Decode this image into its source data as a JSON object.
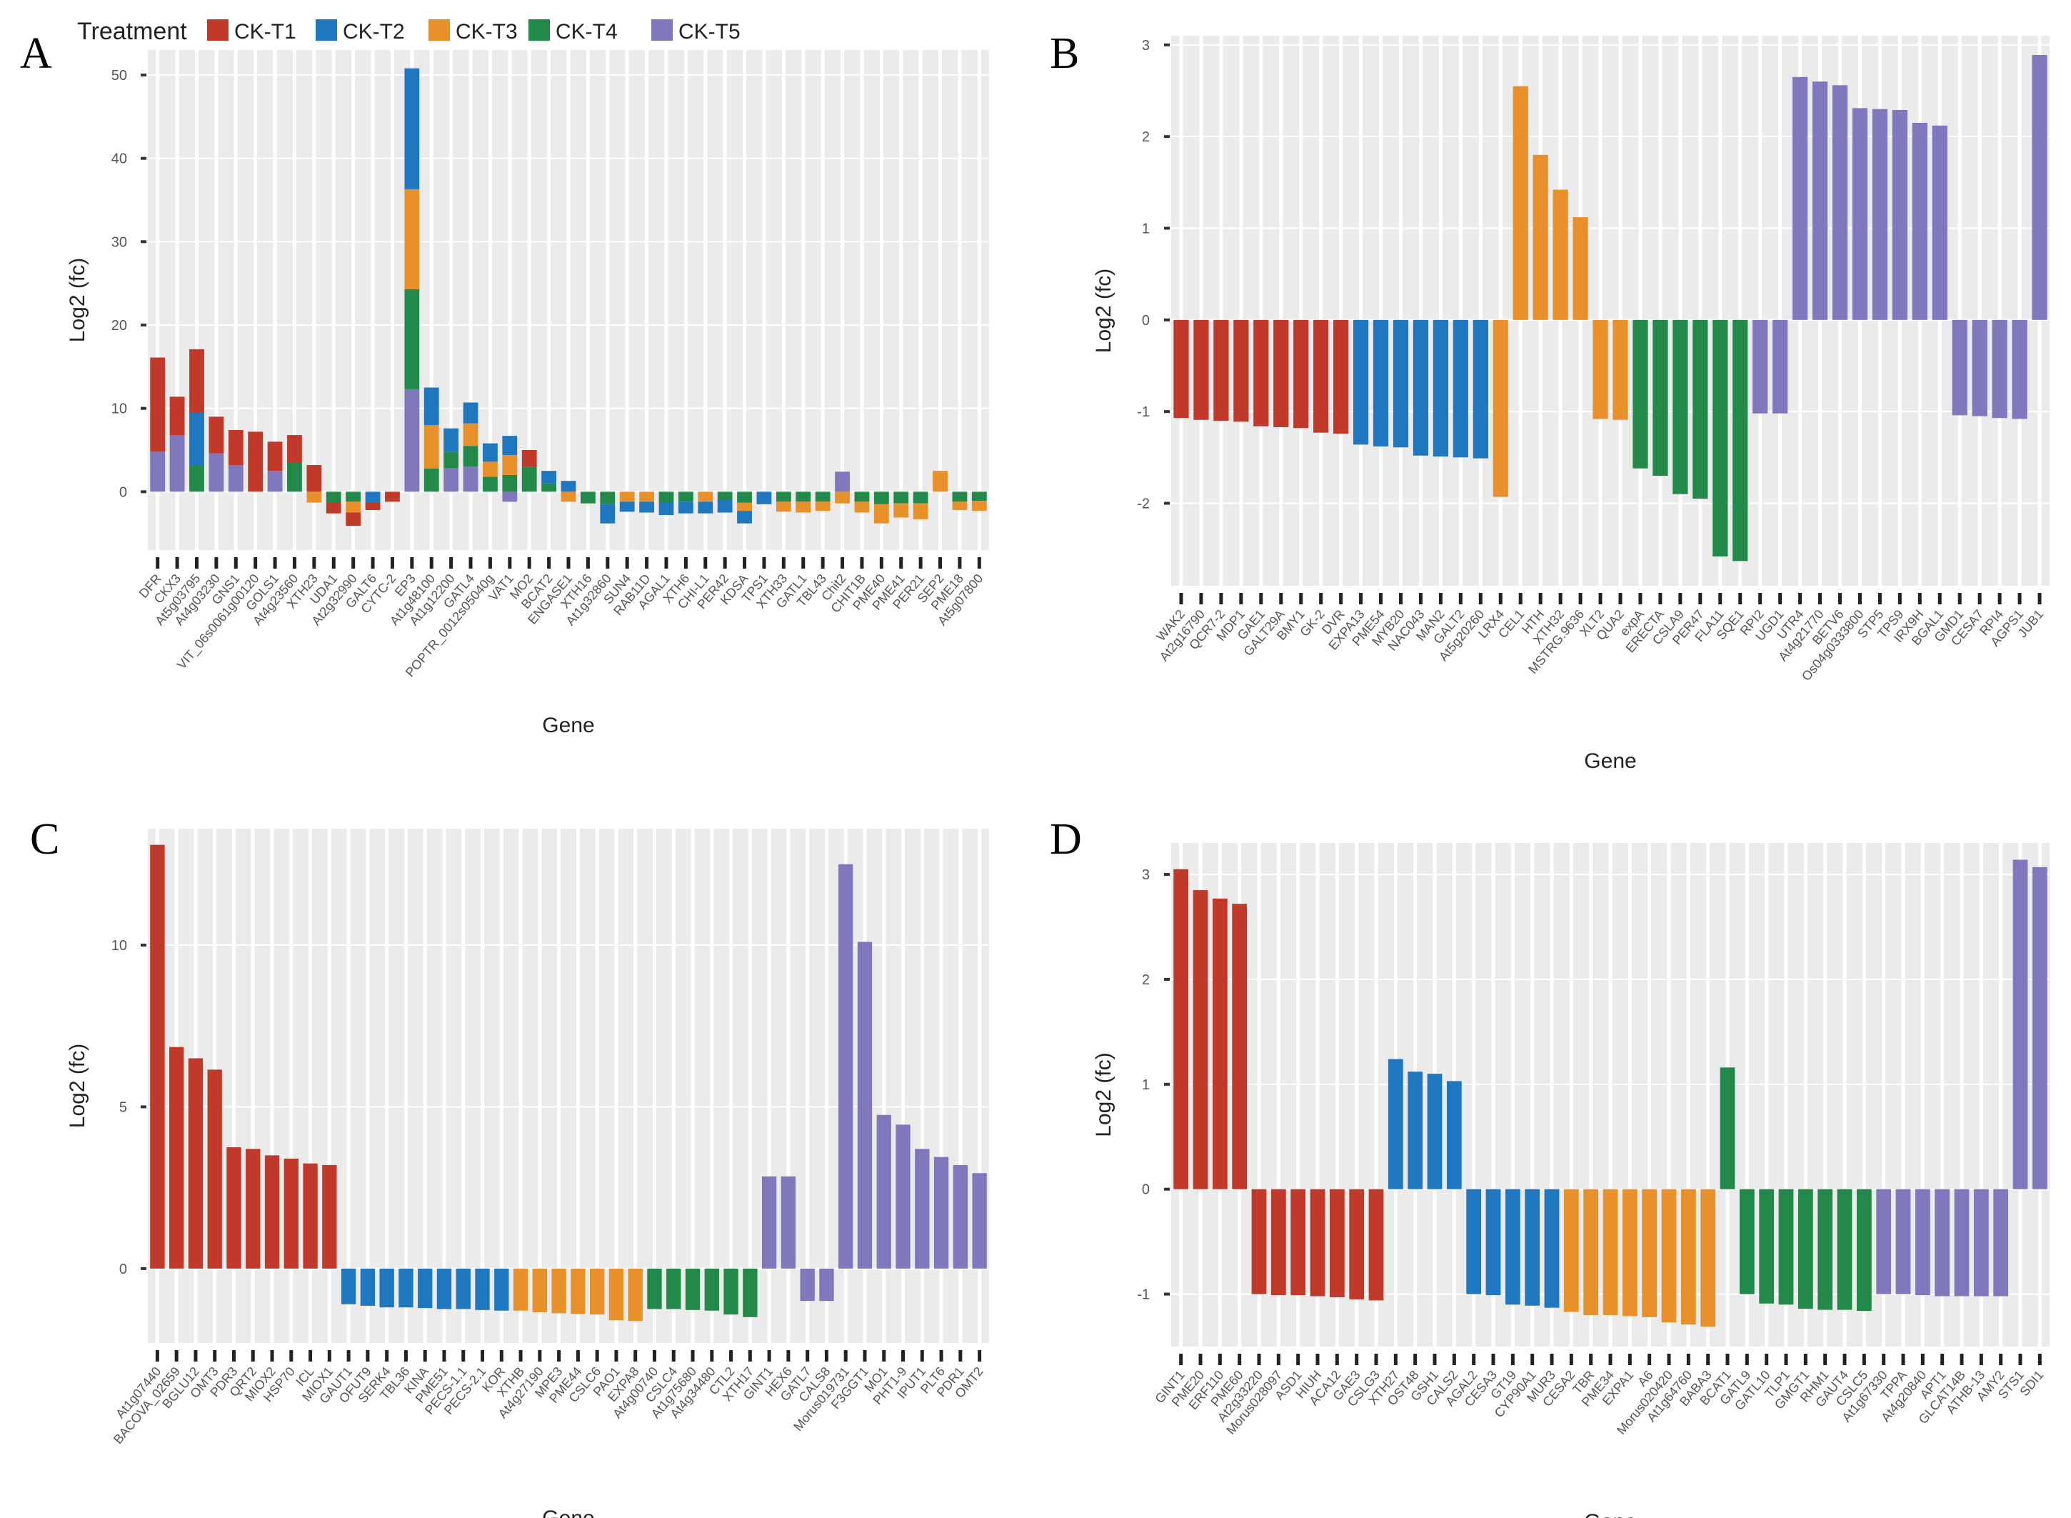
{
  "legend": {
    "title": "Treatment",
    "items": [
      {
        "label": "CK-T1",
        "color": "#C0392B"
      },
      {
        "label": "CK-T2",
        "color": "#1F77C0"
      },
      {
        "label": "CK-T3",
        "color": "#E8902A"
      },
      {
        "label": "CK-T4",
        "color": "#23894A"
      },
      {
        "label": "CK-T5",
        "color": "#8078BC"
      }
    ]
  },
  "chart_data": [
    {
      "panel": "A",
      "type": "bar",
      "stacked": true,
      "xlabel": "Gene",
      "ylabel": "Log2 (fc)",
      "ylim": [
        -7,
        53
      ],
      "yticks": [
        0,
        10,
        20,
        30,
        40,
        50
      ],
      "categories": [
        "DFR",
        "CKX3",
        "At5g03795",
        "At4g03230",
        "GNS1",
        "VIT_06s0061g00120",
        "GOLS1",
        "At4g23560",
        "XTH23",
        "UDA1",
        "At2g32990",
        "GALT6",
        "CYTC-2",
        "EP3",
        "At1g48100",
        "At1g12200",
        "GATL4",
        "POPTR_0012s05040g",
        "VAT1",
        "MO2",
        "BCAT2",
        "ENGASE1",
        "XTH16",
        "At1g32860",
        "SUN4",
        "RAB11D",
        "AGAL1",
        "XTH6",
        "CHI-L1",
        "PER42",
        "KDSA",
        "TPS1",
        "XTH33",
        "GATL1",
        "TBL43",
        "Chit2",
        "CHIT1B",
        "PME40",
        "PME41",
        "PER21",
        "SEP2",
        "PME18",
        "At5g07800"
      ],
      "series": [
        {
          "name": "CK-T5",
          "values": [
            4.8,
            6.8,
            0,
            4.6,
            3.2,
            0,
            2.5,
            0,
            0,
            0,
            0,
            0,
            0,
            12.3,
            0,
            2.8,
            3.0,
            0,
            -1.2,
            0,
            0,
            0,
            0,
            0,
            0,
            0,
            0,
            0,
            0,
            0,
            0,
            0,
            0,
            0,
            0,
            2.4,
            0,
            0,
            0,
            0,
            0,
            0,
            0
          ]
        },
        {
          "name": "CK-T4",
          "values": [
            0,
            0,
            3.2,
            0,
            0,
            0,
            0,
            3.5,
            0,
            -1.3,
            -1.2,
            0,
            0,
            12.0,
            2.8,
            2.0,
            2.5,
            1.8,
            2.0,
            3.0,
            1.0,
            0,
            -1.4,
            -1.5,
            0,
            0,
            -1.3,
            -1.2,
            0,
            -1.0,
            -1.3,
            0,
            -1.2,
            -1.2,
            -1.2,
            0,
            -1.2,
            -1.5,
            -1.4,
            -1.4,
            0,
            -1.2,
            -1.1
          ]
        },
        {
          "name": "CK-T3",
          "values": [
            0,
            0,
            0,
            0,
            0,
            0,
            0,
            0,
            -1.3,
            0,
            -1.3,
            0,
            0,
            12.0,
            5.2,
            0,
            2.7,
            1.8,
            2.4,
            0,
            0,
            -1.2,
            0,
            0,
            -1.2,
            -1.2,
            0,
            0,
            -1.2,
            0,
            -1.0,
            0,
            -1.2,
            -1.3,
            -1.1,
            -1.4,
            -1.3,
            -2.3,
            -1.7,
            -1.9,
            2.5,
            -1.0,
            -1.2
          ]
        },
        {
          "name": "CK-T2",
          "values": [
            0,
            0,
            6.3,
            0,
            0,
            0,
            0,
            0,
            0,
            0,
            0,
            -1.3,
            0,
            14.5,
            4.5,
            2.8,
            2.5,
            2.2,
            2.3,
            0,
            1.5,
            1.3,
            0,
            -2.3,
            -1.2,
            -1.3,
            -1.5,
            -1.4,
            -1.4,
            -1.5,
            -1.5,
            -1.5,
            0,
            0,
            0,
            0,
            0,
            0,
            0,
            0,
            0,
            0,
            0
          ]
        },
        {
          "name": "CK-T1",
          "values": [
            11.3,
            4.6,
            7.6,
            4.4,
            4.2,
            7.2,
            3.5,
            3.3,
            3.2,
            -1.3,
            -1.6,
            -0.9,
            -1.2,
            0,
            0,
            0,
            0,
            0,
            0,
            2.0,
            0,
            0,
            0,
            0,
            0,
            0,
            0,
            0,
            0,
            0,
            0,
            0,
            0,
            0,
            0,
            0,
            0,
            0,
            0,
            0,
            0,
            0,
            0
          ]
        }
      ]
    },
    {
      "panel": "B",
      "type": "bar",
      "xlabel": "Gene",
      "ylabel": "Log2 (fc)",
      "ylim": [
        -2.9,
        3.1
      ],
      "yticks": [
        -2,
        -1,
        0,
        1,
        2,
        3
      ],
      "categories": [
        "WAK2",
        "At2g16790",
        "QCR7-2",
        "MDP1",
        "GAE1",
        "GALT29A",
        "BMY1",
        "GK-2",
        "DVR",
        "EXPA13",
        "PME54",
        "MYB20",
        "NAC043",
        "MAN2",
        "GALT2",
        "At5g20260",
        "LRX4",
        "CEL1",
        "HTH",
        "XTH32",
        "MSTRG.9636",
        "XLT2",
        "QUA2",
        "expA",
        "ERECTA",
        "CSLA9",
        "PER47",
        "FLA11",
        "SQE1",
        "RPI2",
        "UGD1",
        "UTR4",
        "At4g21770",
        "BETV6",
        "Os04g0333800",
        "STP5",
        "TPS9",
        "IRX9H",
        "BGAL1",
        "GMD1",
        "CESA7",
        "RPI4",
        "AGPS1",
        "JUB1"
      ],
      "groups": [
        "CK-T1",
        "CK-T1",
        "CK-T1",
        "CK-T1",
        "CK-T1",
        "CK-T1",
        "CK-T1",
        "CK-T1",
        "CK-T1",
        "CK-T2",
        "CK-T2",
        "CK-T2",
        "CK-T2",
        "CK-T2",
        "CK-T2",
        "CK-T2",
        "CK-T3",
        "CK-T3",
        "CK-T3",
        "CK-T3",
        "CK-T3",
        "CK-T3",
        "CK-T3",
        "CK-T4",
        "CK-T4",
        "CK-T4",
        "CK-T4",
        "CK-T4",
        "CK-T4",
        "CK-T5",
        "CK-T5",
        "CK-T5",
        "CK-T5",
        "CK-T5",
        "CK-T5",
        "CK-T5",
        "CK-T5",
        "CK-T5",
        "CK-T5",
        "CK-T5",
        "CK-T5",
        "CK-T5",
        "CK-T5",
        "CK-T5"
      ],
      "values": [
        -1.07,
        -1.09,
        -1.1,
        -1.11,
        -1.16,
        -1.17,
        -1.18,
        -1.23,
        -1.24,
        -1.36,
        -1.38,
        -1.39,
        -1.48,
        -1.49,
        -1.5,
        -1.51,
        -1.93,
        2.55,
        1.8,
        1.42,
        1.12,
        -1.08,
        -1.09,
        -1.62,
        -1.7,
        -1.9,
        -1.95,
        -2.58,
        -2.63,
        -1.02,
        -1.02,
        2.65,
        2.6,
        2.56,
        2.31,
        2.3,
        2.29,
        2.15,
        2.12,
        -1.04,
        -1.05,
        -1.07,
        -1.08,
        2.89
      ]
    },
    {
      "panel": "C",
      "type": "bar",
      "xlabel": "Gene",
      "ylabel": "Log2 (fc)",
      "ylim": [
        -2.3,
        13.6
      ],
      "yticks": [
        0,
        5,
        10
      ],
      "categories": [
        "At1g07440",
        "BACOVA_02659",
        "BGLU12",
        "OMT3",
        "PDR3",
        "QRT2",
        "MIOX2",
        "HSP70",
        "ICL",
        "MIOX1",
        "GAUT1",
        "OFUT9",
        "SERK4",
        "TBL36",
        "KINA",
        "PME51",
        "PECS-1.1",
        "PECS-2.1",
        "KOR",
        "XTHB",
        "At4g27190",
        "MPE3",
        "PME44",
        "CSLC6",
        "PAO1",
        "EXPA8",
        "At4g00740",
        "CSLC4",
        "At1g75680",
        "At4g34480",
        "CTL2",
        "XTH17",
        "GINT1",
        "HEX6",
        "GATL7",
        "CALS8",
        "Morus019731",
        "F3GGT1",
        "MO1",
        "PHT1-9",
        "IPUT1",
        "PLT6",
        "PDR1",
        "OMT2"
      ],
      "groups": [
        "CK-T1",
        "CK-T1",
        "CK-T1",
        "CK-T1",
        "CK-T1",
        "CK-T1",
        "CK-T1",
        "CK-T1",
        "CK-T1",
        "CK-T1",
        "CK-T2",
        "CK-T2",
        "CK-T2",
        "CK-T2",
        "CK-T2",
        "CK-T2",
        "CK-T2",
        "CK-T2",
        "CK-T2",
        "CK-T3",
        "CK-T3",
        "CK-T3",
        "CK-T3",
        "CK-T3",
        "CK-T3",
        "CK-T3",
        "CK-T4",
        "CK-T4",
        "CK-T4",
        "CK-T4",
        "CK-T4",
        "CK-T4",
        "CK-T5",
        "CK-T5",
        "CK-T5",
        "CK-T5",
        "CK-T5",
        "CK-T5",
        "CK-T5",
        "CK-T5",
        "CK-T5",
        "CK-T5",
        "CK-T5",
        "CK-T5"
      ],
      "values": [
        13.1,
        6.85,
        6.5,
        6.15,
        3.75,
        3.7,
        3.5,
        3.4,
        3.25,
        3.2,
        -1.1,
        -1.15,
        -1.2,
        -1.2,
        -1.22,
        -1.25,
        -1.25,
        -1.28,
        -1.3,
        -1.3,
        -1.35,
        -1.38,
        -1.4,
        -1.42,
        -1.6,
        -1.62,
        -1.25,
        -1.25,
        -1.28,
        -1.3,
        -1.42,
        -1.5,
        2.85,
        2.85,
        -1.0,
        -1.0,
        12.5,
        10.1,
        4.75,
        4.45,
        3.7,
        3.45,
        3.2,
        2.95
      ]
    },
    {
      "panel": "D",
      "type": "bar",
      "xlabel": "Gene",
      "ylabel": "Log2 (fc)",
      "ylim": [
        -1.5,
        3.3
      ],
      "yticks": [
        -1,
        0,
        1,
        2,
        3
      ],
      "categories": [
        "GINT1",
        "PME20",
        "ERF110",
        "PME60",
        "At2g33220",
        "Morus028097",
        "ASD1",
        "HIUH",
        "ACA12",
        "GAE3",
        "CSLG3",
        "XTH27",
        "OST48",
        "GSH1",
        "CALS2",
        "AGAL2",
        "CESA3",
        "GT19",
        "CYP90A1",
        "MUR3",
        "CESA2",
        "TBR",
        "PME34",
        "EXPA1",
        "A6",
        "Morus020420",
        "At1g64760",
        "BABA3",
        "BCAT1",
        "GATL9",
        "GATL10",
        "TLP1",
        "GMGT1",
        "RHM1",
        "GAUT4",
        "CSLC5",
        "At1g67330",
        "TPPA",
        "At4g20840",
        "APT1",
        "GLCAT14B",
        "ATHB-13",
        "AMY2",
        "STS1",
        "SDI1"
      ],
      "groups": [
        "CK-T1",
        "CK-T1",
        "CK-T1",
        "CK-T1",
        "CK-T1",
        "CK-T1",
        "CK-T1",
        "CK-T1",
        "CK-T1",
        "CK-T1",
        "CK-T1",
        "CK-T2",
        "CK-T2",
        "CK-T2",
        "CK-T2",
        "CK-T2",
        "CK-T2",
        "CK-T2",
        "CK-T2",
        "CK-T2",
        "CK-T3",
        "CK-T3",
        "CK-T3",
        "CK-T3",
        "CK-T3",
        "CK-T3",
        "CK-T3",
        "CK-T3",
        "CK-T4",
        "CK-T4",
        "CK-T4",
        "CK-T4",
        "CK-T4",
        "CK-T4",
        "CK-T4",
        "CK-T4",
        "CK-T5",
        "CK-T5",
        "CK-T5",
        "CK-T5",
        "CK-T5",
        "CK-T5",
        "CK-T5",
        "CK-T5",
        "CK-T5"
      ],
      "values": [
        3.05,
        2.85,
        2.77,
        2.72,
        -1.0,
        -1.01,
        -1.01,
        -1.02,
        -1.03,
        -1.05,
        -1.06,
        1.24,
        1.12,
        1.1,
        1.03,
        -1.0,
        -1.01,
        -1.1,
        -1.11,
        -1.13,
        -1.17,
        -1.2,
        -1.2,
        -1.21,
        -1.22,
        -1.27,
        -1.29,
        -1.31,
        1.16,
        -1.0,
        -1.09,
        -1.1,
        -1.14,
        -1.15,
        -1.15,
        -1.16,
        -1.0,
        -1.0,
        -1.01,
        -1.02,
        -1.02,
        -1.02,
        -1.02,
        3.14,
        3.07
      ]
    }
  ]
}
